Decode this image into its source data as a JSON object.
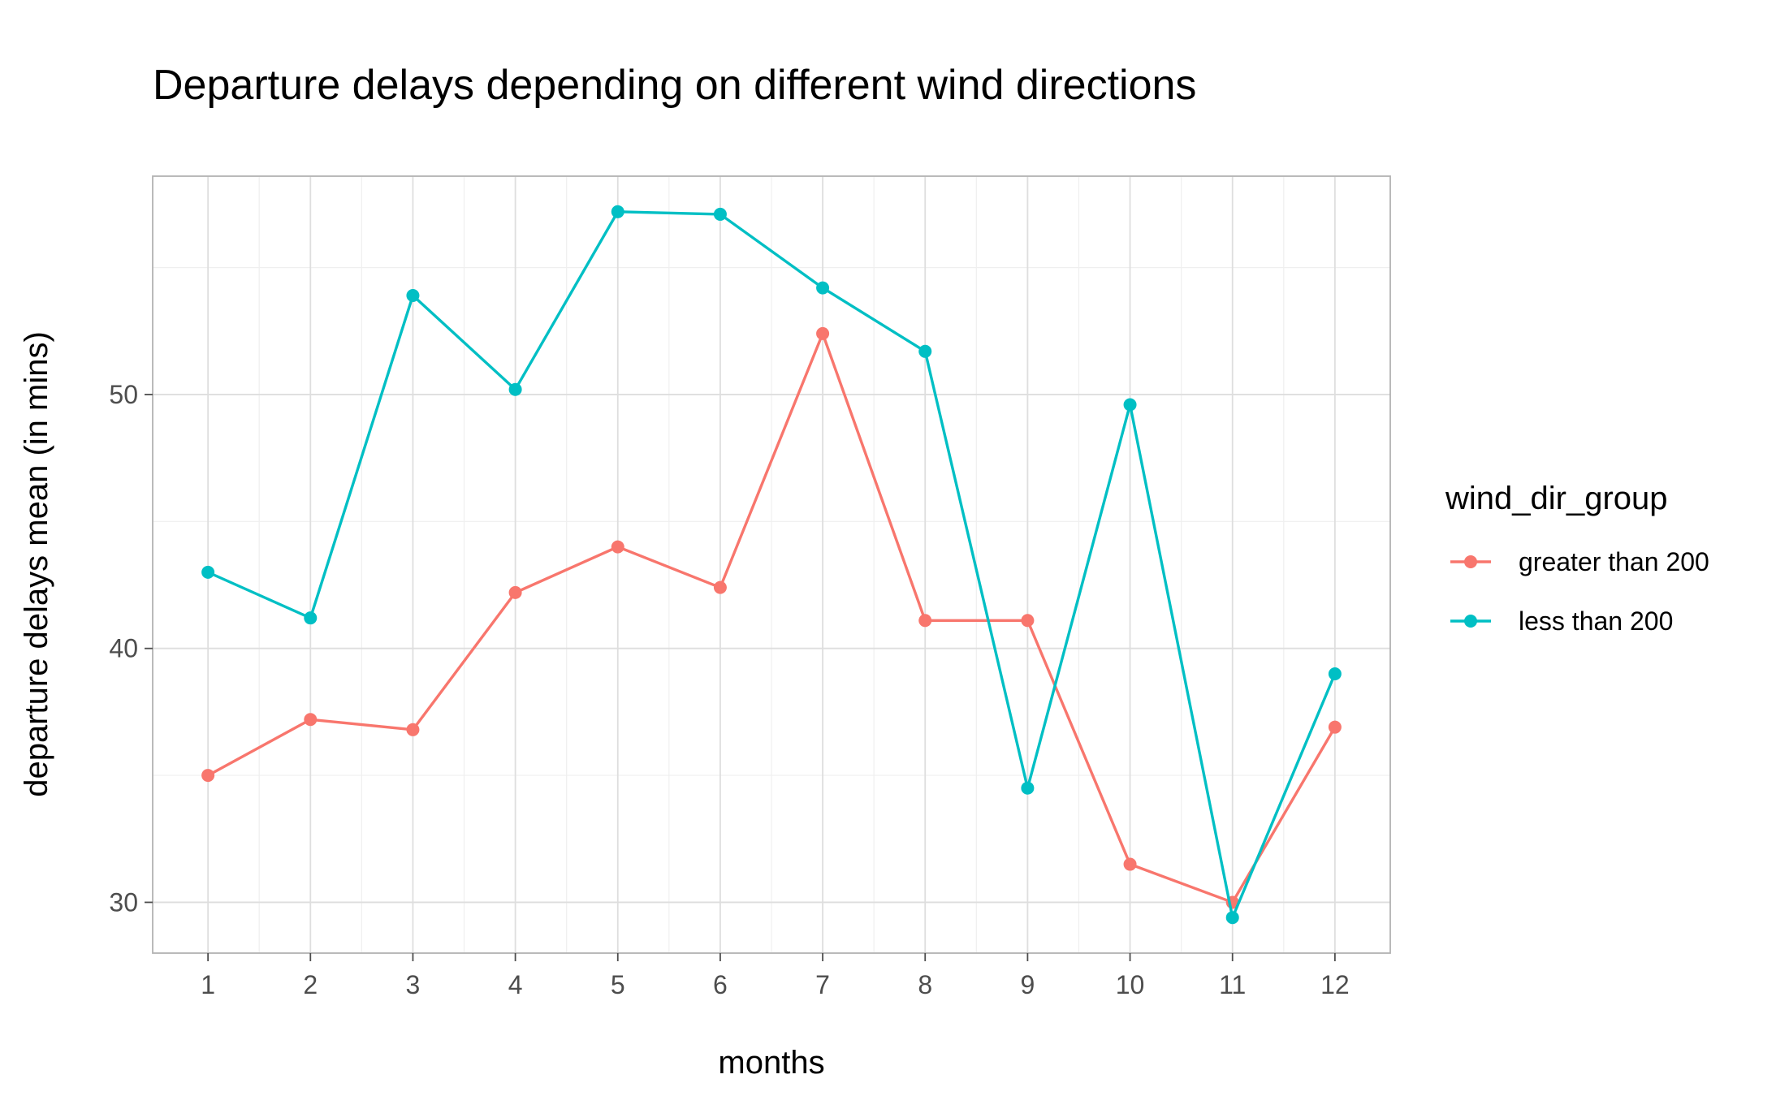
{
  "chart_data": {
    "type": "line",
    "title": "Departure delays depending on different wind directions",
    "xlabel": "months",
    "ylabel": "departure delays mean (in mins)",
    "x": [
      1,
      2,
      3,
      4,
      5,
      6,
      7,
      8,
      9,
      10,
      11,
      12
    ],
    "x_tick_labels": [
      "1",
      "2",
      "3",
      "4",
      "5",
      "6",
      "7",
      "8",
      "9",
      "10",
      "11",
      "12"
    ],
    "y_ticks": [
      30,
      40,
      50
    ],
    "y_tick_labels": [
      "30",
      "40",
      "50"
    ],
    "xlim": [
      0.46,
      12.54
    ],
    "ylim": [
      28.0,
      58.6
    ],
    "grid": true,
    "legend": {
      "title": "wind_dir_group",
      "placement": "right"
    },
    "series": [
      {
        "name": "greater than 200",
        "color": "#F8766D",
        "values": [
          35.0,
          37.2,
          36.8,
          42.2,
          44.0,
          42.4,
          52.4,
          41.1,
          41.1,
          31.5,
          30.0,
          36.9
        ]
      },
      {
        "name": "less than 200",
        "color": "#00BFC4",
        "values": [
          43.0,
          41.2,
          53.9,
          50.2,
          57.2,
          57.1,
          54.2,
          51.7,
          34.5,
          49.6,
          29.4,
          39.0
        ]
      }
    ]
  }
}
